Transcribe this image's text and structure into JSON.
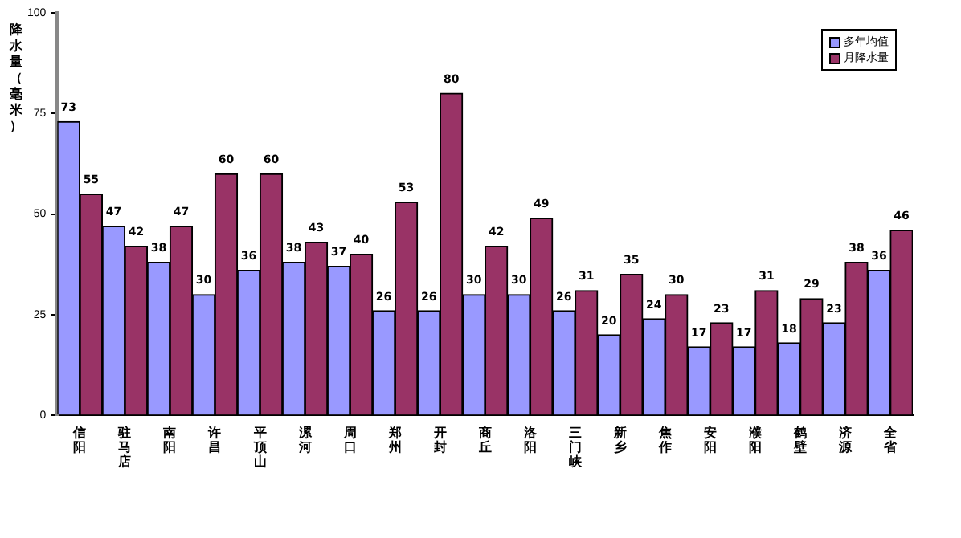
{
  "chart_data": {
    "type": "bar",
    "ylabel": "降水量（毫米）",
    "categories": [
      "信阳",
      "驻马店",
      "南阳",
      "许昌",
      "平顶山",
      "漯河",
      "周口",
      "郑州",
      "开封",
      "商丘",
      "洛阳",
      "三门峡",
      "新乡",
      "焦作",
      "安阳",
      "濮阳",
      "鹤壁",
      "济源",
      "全省"
    ],
    "series": [
      {
        "name": "多年均值",
        "color": "#9999ff",
        "values": [
          73,
          47,
          38,
          30,
          36,
          38,
          37,
          26,
          26,
          30,
          30,
          26,
          20,
          24,
          17,
          17,
          18,
          23,
          36
        ]
      },
      {
        "name": "月降水量",
        "color": "#993366",
        "values": [
          55,
          42,
          47,
          60,
          60,
          43,
          40,
          53,
          80,
          42,
          49,
          31,
          35,
          30,
          23,
          31,
          29,
          38,
          46
        ]
      }
    ],
    "ylim": [
      0,
      100
    ],
    "yticks": [
      0,
      25,
      50,
      75,
      100
    ],
    "grid": false,
    "legend": "top right",
    "data_labels": true
  }
}
